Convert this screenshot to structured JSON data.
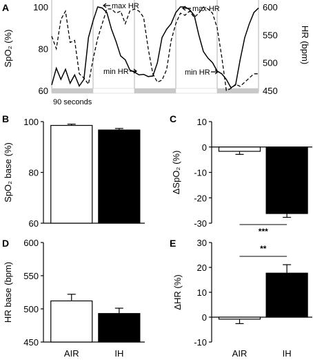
{
  "chart_data": [
    {
      "panel": "A",
      "type": "line",
      "ylabel_left": "SpO₂ (%)",
      "ylabel_right": "HR (bpm)",
      "ylim_left": [
        60,
        100
      ],
      "yticks_left": [
        "100",
        "80",
        "60"
      ],
      "ylim_right": [
        450,
        600
      ],
      "yticks_right": [
        "600",
        "550",
        "500",
        "450"
      ],
      "duration_label": "90 seconds",
      "annotations": [
        "max HR",
        "max HR",
        "min HR",
        "min HR"
      ],
      "grid": "vertical lines at cycle boundaries",
      "series": [
        {
          "style": "solid",
          "axis": "right",
          "x": [
            0,
            2,
            4,
            6,
            8,
            10,
            12,
            14,
            16,
            18,
            20,
            22,
            24,
            26,
            28,
            30,
            32,
            34,
            36,
            38,
            40,
            42,
            44,
            46,
            48,
            50,
            52,
            54,
            56,
            58,
            60,
            62,
            64,
            66,
            68,
            70,
            72,
            74,
            76,
            78,
            80,
            82,
            84,
            86,
            88,
            90
          ],
          "values": [
            460,
            490,
            470,
            488,
            463,
            478,
            458,
            470,
            545,
            575,
            600,
            598,
            590,
            560,
            538,
            512,
            505,
            487,
            483,
            478,
            479,
            475,
            476,
            500,
            545,
            560,
            570,
            590,
            600,
            600,
            595,
            585,
            550,
            520,
            508,
            500,
            485,
            480,
            470,
            455,
            460,
            505,
            545,
            570,
            590,
            598
          ]
        },
        {
          "style": "dashed",
          "axis": "left",
          "x": [
            0,
            2,
            4,
            6,
            8,
            10,
            12,
            14,
            16,
            18,
            20,
            22,
            24,
            26,
            28,
            30,
            32,
            34,
            36,
            38,
            40,
            42,
            44,
            46,
            48,
            50,
            52,
            54,
            56,
            58,
            60,
            62,
            64,
            66,
            68,
            70,
            72,
            74,
            76,
            78,
            80,
            82,
            84,
            86,
            88,
            90
          ],
          "values": [
            86,
            80,
            94,
            98,
            83,
            84,
            68,
            66,
            63,
            75,
            85,
            92,
            99,
            99,
            97,
            98,
            92,
            98,
            99,
            98,
            95,
            80,
            68,
            64,
            65,
            70,
            84,
            92,
            97,
            96,
            98,
            95,
            97,
            100,
            99,
            97,
            90,
            76,
            60,
            61,
            63,
            62,
            64,
            66,
            68,
            68
          ]
        }
      ],
      "phases": [
        "IH",
        "AIR",
        "IH",
        "AIR",
        "IH"
      ]
    },
    {
      "panel": "B",
      "type": "bar",
      "ylabel": "SpO₂ base (%)",
      "categories": [
        "AIR",
        "IH"
      ],
      "values": [
        98.5,
        96.7
      ],
      "errors": [
        0.5,
        0.6
      ],
      "ylim": [
        60,
        100
      ],
      "yticks": [
        "100",
        "80",
        "60"
      ],
      "colors": [
        "#ffffff",
        "#000000"
      ]
    },
    {
      "panel": "C",
      "type": "bar",
      "ylabel": "ΔSpO₂ (%)",
      "categories": [
        "AIR",
        "IH"
      ],
      "values": [
        -1.7,
        -26.2
      ],
      "errors": [
        1.2,
        1.5
      ],
      "ylim": [
        -30,
        10
      ],
      "yticks": [
        "10",
        "0",
        "-10",
        "-20",
        "-30"
      ],
      "significance": "***",
      "colors": [
        "#ffffff",
        "#000000"
      ]
    },
    {
      "panel": "D",
      "type": "bar",
      "ylabel": "HR base (bpm)",
      "categories": [
        "AIR",
        "IH"
      ],
      "values": [
        512,
        493
      ],
      "errors": [
        10,
        8
      ],
      "ylim": [
        450,
        600
      ],
      "yticks": [
        "600",
        "550",
        "500",
        "450"
      ],
      "colors": [
        "#ffffff",
        "#000000"
      ]
    },
    {
      "panel": "E",
      "type": "bar",
      "ylabel": "ΔHR (%)",
      "categories": [
        "AIR",
        "IH"
      ],
      "values": [
        -0.8,
        17.7
      ],
      "errors": [
        1.8,
        3.4
      ],
      "ylim": [
        -10,
        30
      ],
      "yticks": [
        "30",
        "20",
        "10",
        "0",
        "-10"
      ],
      "significance": "**",
      "colors": [
        "#ffffff",
        "#000000"
      ]
    }
  ]
}
